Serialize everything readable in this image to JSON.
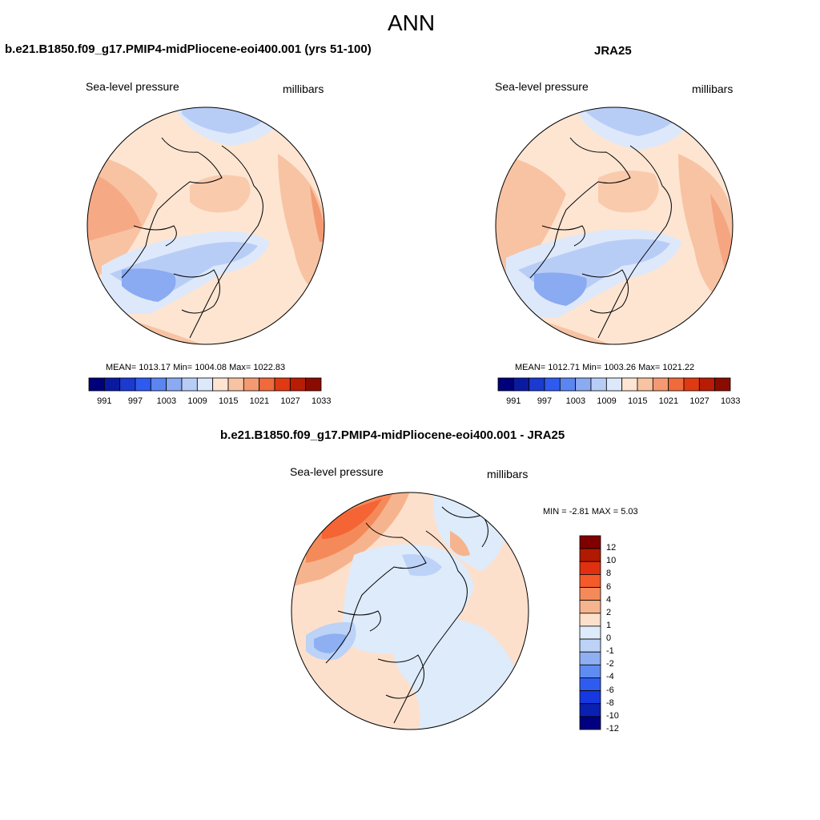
{
  "figure": {
    "title": "ANN",
    "ticks_label_note": "colorbar"
  },
  "panels": [
    {
      "id": "model",
      "case_title": "b.e21.B1850.f09_g17.PMIP4-midPliocene-eoi400.001 (yrs 51-100)",
      "variable": "Sea-level pressure",
      "units": "millibars",
      "stats": "MEAN= 1013.17  Min= 1004.08  Max= 1022.83"
    },
    {
      "id": "obs",
      "case_title": "JRA25",
      "variable": "Sea-level pressure",
      "units": "millibars",
      "stats": "MEAN= 1012.71  Min= 1003.26  Max= 1021.22"
    },
    {
      "id": "diff",
      "case_title": "b.e21.B1850.f09_g17.PMIP4-midPliocene-eoi400.001 - JRA25",
      "variable": "Sea-level pressure",
      "units": "millibars",
      "stats": "MIN =  -2.81 MAX =   5.03"
    }
  ],
  "colorbars": {
    "abs_levels": [
      "991",
      "997",
      "1003",
      "1009",
      "1015",
      "1021",
      "1027",
      "1033"
    ],
    "abs_colors": [
      "#00007a",
      "#0a1aa0",
      "#1a3ad0",
      "#2f5af0",
      "#5b85f0",
      "#8aaaf2",
      "#b8cdf6",
      "#dde8fb",
      "#fde5d2",
      "#f8c3a3",
      "#f49a72",
      "#f06a3c",
      "#e03a12",
      "#b81c05",
      "#8a0c00"
    ],
    "diff_levels": [
      "12",
      "10",
      "8",
      "6",
      "4",
      "2",
      "1",
      "0",
      "-1",
      "-2",
      "-4",
      "-6",
      "-8",
      "-10",
      "-12"
    ],
    "diff_colors": [
      "#800000",
      "#b01a00",
      "#e03010",
      "#f55a2a",
      "#f48a5a",
      "#f6b48e",
      "#fde0cc",
      "#ddebfb",
      "#bcd2f7",
      "#8eb0f2",
      "#5f8cf0",
      "#2f5cf0",
      "#1638e0",
      "#0a20b0",
      "#000080"
    ]
  }
}
